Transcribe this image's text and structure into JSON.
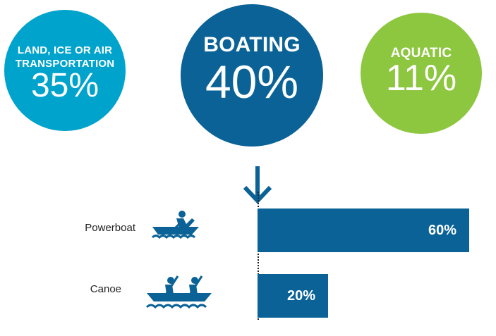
{
  "circles": [
    {
      "label": "LAND, ICE OR AIR TRANSPORTATION",
      "value": "35%",
      "color": "#00a3cc"
    },
    {
      "label": "BOATING",
      "value": "40%",
      "color": "#0a6296"
    },
    {
      "label": "AQUATIC",
      "value": "11%",
      "color": "#8dc63f"
    }
  ],
  "icons": [
    "arrow-down-icon",
    "powerboat-icon",
    "canoe-icon"
  ],
  "chart_data": {
    "type": "bar",
    "orientation": "horizontal",
    "categories": [
      "Powerboat",
      "Canoe"
    ],
    "values": [
      60,
      20
    ],
    "value_labels": [
      "60%",
      "20%"
    ],
    "xlim": [
      0,
      100
    ],
    "bar_color": "#0a6296"
  }
}
